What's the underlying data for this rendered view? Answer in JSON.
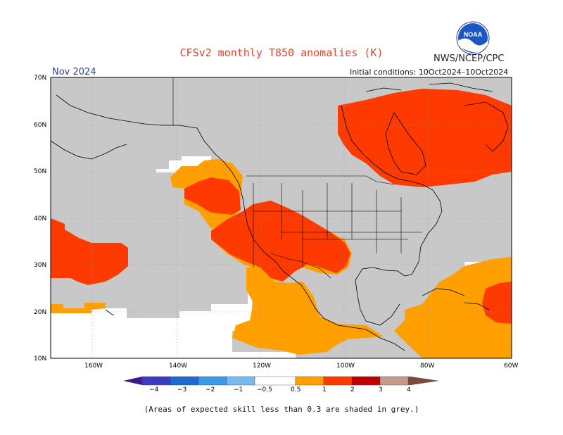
{
  "title": "CFSv2 monthly T850 anomalies (K)",
  "agency": "NWS/NCEP/CPC",
  "logo_text": "NOAA",
  "month": "Nov 2024",
  "initial_conditions": "Initial conditions: 10Oct2024–10Oct2024",
  "lat_labels": [
    "70N",
    "60N",
    "50N",
    "40N",
    "30N",
    "20N",
    "10N"
  ],
  "lon_labels": [
    "160W",
    "140W",
    "120W",
    "100W",
    "80W",
    "60W"
  ],
  "colorbar": {
    "labels": [
      "−4",
      "−3",
      "−2",
      "−1",
      "−0.5",
      "0.5",
      "1",
      "2",
      "3",
      "4"
    ],
    "colors": {
      "lt_-4": "#3b1a8c",
      "-4_-3": "#3b3bc4",
      "-3_-2": "#1e6ad1",
      "-2_-1": "#3d97e8",
      "-1_-0.5": "#7ab8f0",
      "-0.5_0.5": "#ffffff",
      "0.5_1": "#ffa000",
      "1_2": "#ff3a00",
      "2_3": "#c00000",
      "3_4": "#c39a8c",
      "gt_4": "#7a4a3a"
    }
  },
  "map_colors": {
    "grey_low_skill": "#c8c8c8",
    "orange": "#ffa000",
    "red": "#ff3a00",
    "white": "#ffffff"
  },
  "footnote": "(Areas of expected skill less than 0.3 are shaded in grey.)"
}
